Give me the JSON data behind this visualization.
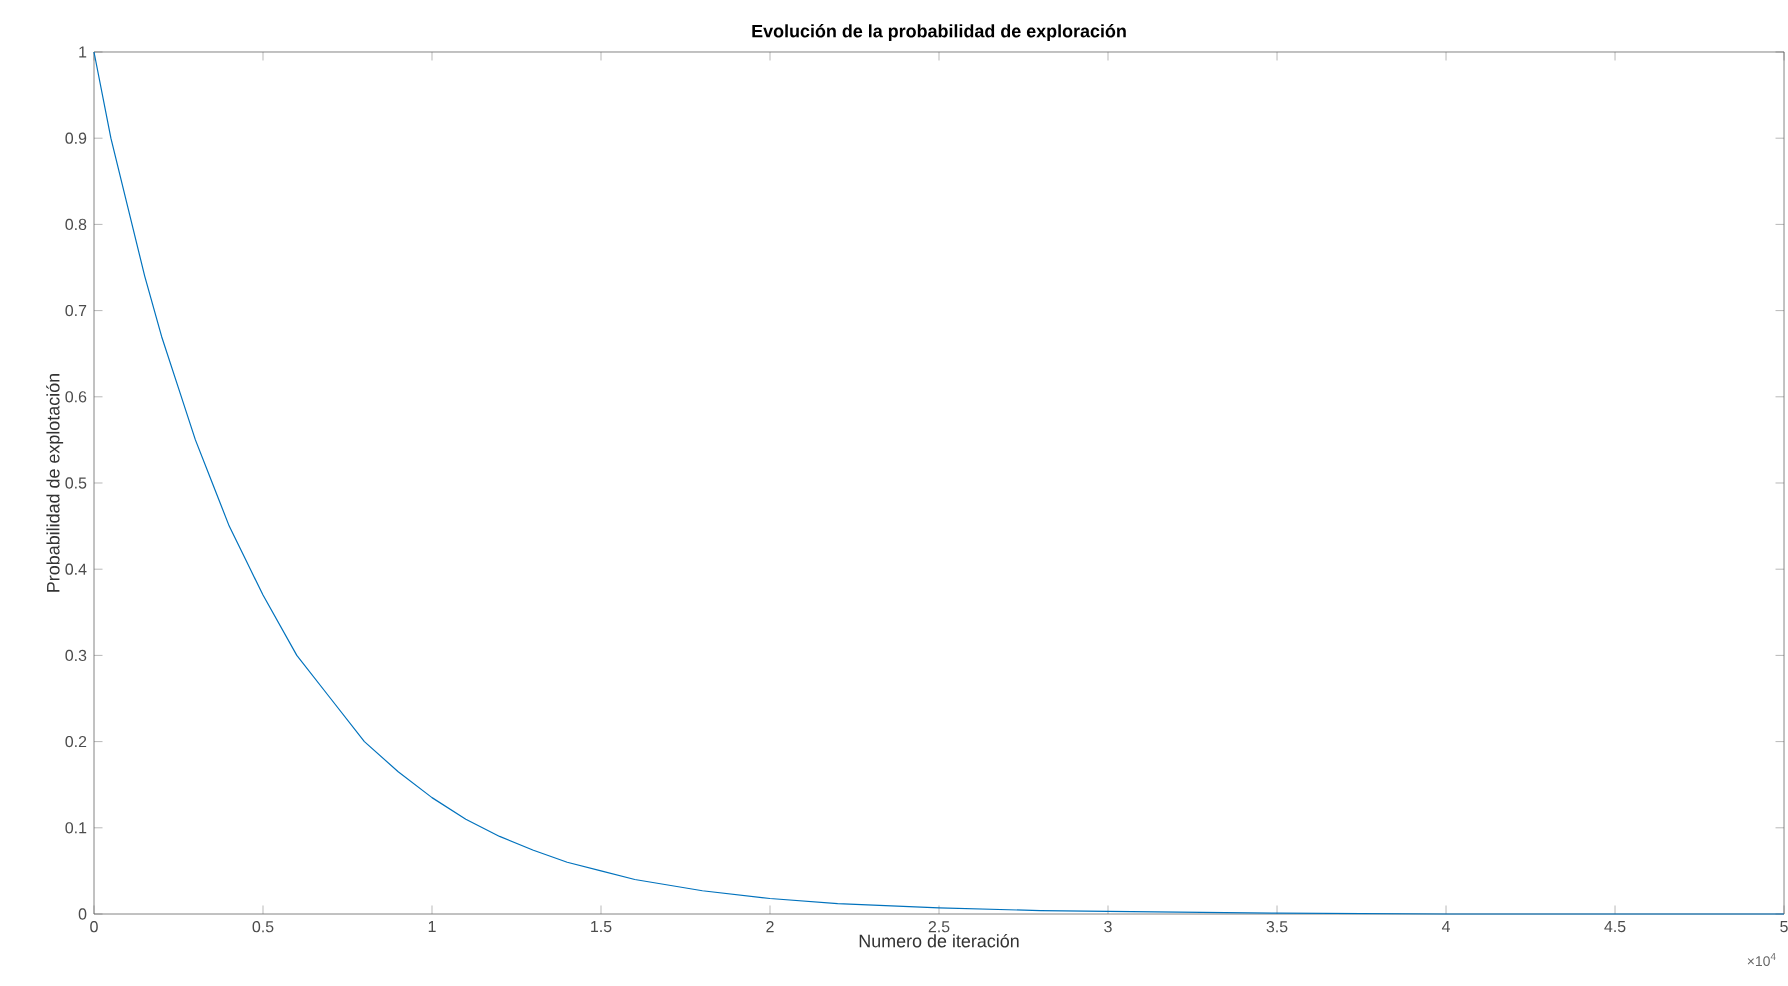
{
  "chart_data": {
    "type": "line",
    "title": "Evolución de la probabilidad de exploración",
    "xlabel": "Numero de iteración",
    "ylabel": "Probabilidad de explotación",
    "x": [
      0,
      0.05,
      0.1,
      0.15,
      0.2,
      0.25,
      0.3,
      0.35,
      0.4,
      0.45,
      0.5,
      0.6,
      0.7,
      0.8,
      0.9,
      1.0,
      1.1,
      1.2,
      1.3,
      1.4,
      1.5,
      1.6,
      1.8,
      2.0,
      2.2,
      2.5,
      2.8,
      3.0,
      3.5,
      4.0,
      4.5,
      5.0
    ],
    "series": [
      {
        "color": "#0072bd",
        "values": [
          1.0,
          0.9,
          0.82,
          0.74,
          0.67,
          0.61,
          0.55,
          0.5,
          0.45,
          0.41,
          0.37,
          0.3,
          0.25,
          0.2,
          0.165,
          0.135,
          0.11,
          0.09,
          0.074,
          0.06,
          0.05,
          0.04,
          0.027,
          0.018,
          0.012,
          0.007,
          0.004,
          0.003,
          0.001,
          0.0,
          0.0,
          0.0
        ]
      }
    ],
    "xlim": [
      0,
      5
    ],
    "ylim": [
      0,
      1
    ],
    "xticks": [
      0,
      0.5,
      1,
      1.5,
      2,
      2.5,
      3,
      3.5,
      4,
      4.5,
      5
    ],
    "yticks": [
      0,
      0.1,
      0.2,
      0.3,
      0.4,
      0.5,
      0.6,
      0.7,
      0.8,
      0.9,
      1
    ],
    "annotations": [
      "×10$^{4}$"
    ],
    "grid": false,
    "marker": "none",
    "line_style": "solid"
  }
}
